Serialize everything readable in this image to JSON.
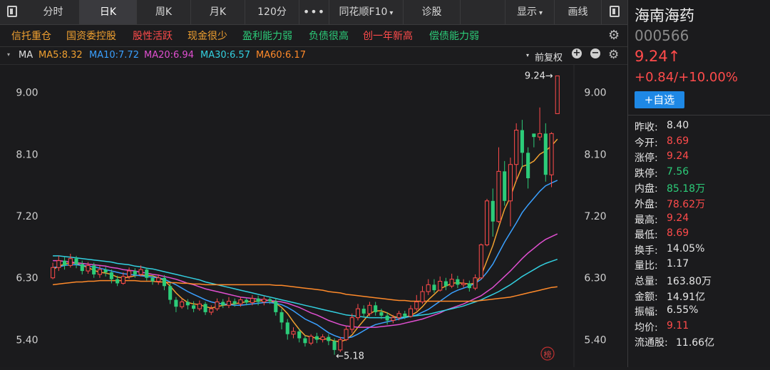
{
  "tabs": [
    "分时",
    "日K",
    "周K",
    "月K",
    "120分",
    "•••",
    "同花顺F10",
    "诊股",
    "显示",
    "画线"
  ],
  "active_tab": "日K",
  "tags": [
    {
      "text": "信托重仓",
      "color": "#f0a030"
    },
    {
      "text": "国资委控股",
      "color": "#f0a030"
    },
    {
      "text": "股性活跃",
      "color": "#ff4b4b"
    },
    {
      "text": "现金很少",
      "color": "#f0a030"
    },
    {
      "text": "盈利能力弱",
      "color": "#2ccc79"
    },
    {
      "text": "负债很高",
      "color": "#2ccc79"
    },
    {
      "text": "创一年新高",
      "color": "#ff4b4b"
    },
    {
      "text": "偿债能力弱",
      "color": "#2ccc79"
    }
  ],
  "ma_label": "MA",
  "ma": [
    {
      "text": "MA5:8.32",
      "color": "#f0a030"
    },
    {
      "text": "MA10:7.72",
      "color": "#3aa0ff"
    },
    {
      "text": "MA20:6.94",
      "color": "#e04fd0"
    },
    {
      "text": "MA30:6.57",
      "color": "#33d0e0"
    },
    {
      "text": "MA60:6.17",
      "color": "#ff8a2a"
    }
  ],
  "adjust_label": "前复权",
  "rank_icon_label": "榜",
  "stock": {
    "name": "海南海药",
    "code": "000566",
    "price": "9.24↑",
    "change": "+0.84/+10.00%",
    "watch_button": "+自选"
  },
  "stats": [
    {
      "label": "昨收:",
      "value": "8.40",
      "cls": ""
    },
    {
      "label": "今开:",
      "value": "8.69",
      "cls": "red"
    },
    {
      "label": "涨停:",
      "value": "9.24",
      "cls": "red"
    },
    {
      "label": "跌停:",
      "value": "7.56",
      "cls": "green"
    },
    {
      "label": "内盘:",
      "value": "85.18万",
      "cls": "green"
    },
    {
      "label": "外盘:",
      "value": "78.62万",
      "cls": "red"
    },
    {
      "label": "最高:",
      "value": "9.24",
      "cls": "red"
    },
    {
      "label": "最低:",
      "value": "8.69",
      "cls": "red"
    },
    {
      "label": "换手:",
      "value": "14.05%",
      "cls": ""
    },
    {
      "label": "量比:",
      "value": "1.17",
      "cls": ""
    },
    {
      "label": "总量:",
      "value": "163.80万",
      "cls": ""
    },
    {
      "label": "金额:",
      "value": "14.91亿",
      "cls": ""
    },
    {
      "label": "振幅:",
      "value": "6.55%",
      "cls": ""
    },
    {
      "label": "均价:",
      "value": "9.11",
      "cls": "red"
    },
    {
      "label": "流通股:",
      "value": "11.66亿",
      "cls": ""
    }
  ],
  "chart_data": {
    "type": "candlestick",
    "y_ticks": [
      "9.00",
      "8.10",
      "7.20",
      "6.30",
      "5.40"
    ],
    "y_tick_values": [
      9.0,
      8.1,
      7.2,
      6.3,
      5.4
    ],
    "y_range": [
      5.0,
      9.4
    ],
    "annotations": [
      {
        "text": "9.24→",
        "value": 9.24
      },
      {
        "text": "←5.18",
        "value": 5.18
      }
    ],
    "candles": [
      [
        6.3,
        6.45,
        6.28,
        6.52
      ],
      [
        6.45,
        6.55,
        6.4,
        6.62
      ],
      [
        6.55,
        6.48,
        6.42,
        6.6
      ],
      [
        6.48,
        6.58,
        6.45,
        6.65
      ],
      [
        6.58,
        6.5,
        6.44,
        6.62
      ],
      [
        6.5,
        6.4,
        6.35,
        6.55
      ],
      [
        6.4,
        6.48,
        6.36,
        6.53
      ],
      [
        6.48,
        6.35,
        6.3,
        6.52
      ],
      [
        6.35,
        6.42,
        6.3,
        6.47
      ],
      [
        6.42,
        6.38,
        6.32,
        6.46
      ],
      [
        6.38,
        6.28,
        6.22,
        6.42
      ],
      [
        6.28,
        6.22,
        6.18,
        6.33
      ],
      [
        6.22,
        6.32,
        6.2,
        6.38
      ],
      [
        6.32,
        6.4,
        6.28,
        6.45
      ],
      [
        6.4,
        6.35,
        6.3,
        6.44
      ],
      [
        6.35,
        6.42,
        6.32,
        6.48
      ],
      [
        6.42,
        6.3,
        6.26,
        6.45
      ],
      [
        6.3,
        6.25,
        6.2,
        6.34
      ],
      [
        6.25,
        6.3,
        6.2,
        6.35
      ],
      [
        6.3,
        6.18,
        6.12,
        6.34
      ],
      [
        6.18,
        5.98,
        5.92,
        6.22
      ],
      [
        5.98,
        5.88,
        5.8,
        6.02
      ],
      [
        5.88,
        5.95,
        5.85,
        6.0
      ],
      [
        5.95,
        5.9,
        5.84,
        5.99
      ],
      [
        5.9,
        5.85,
        5.8,
        5.96
      ],
      [
        5.85,
        5.92,
        5.82,
        5.97
      ],
      [
        5.92,
        5.8,
        5.76,
        5.95
      ],
      [
        5.8,
        5.85,
        5.76,
        5.9
      ],
      [
        5.85,
        5.95,
        5.82,
        6.0
      ],
      [
        5.95,
        5.9,
        5.86,
        5.99
      ],
      [
        5.9,
        5.96,
        5.86,
        6.02
      ],
      [
        5.96,
        5.92,
        5.88,
        6.0
      ],
      [
        5.92,
        5.98,
        5.88,
        6.02
      ],
      [
        5.98,
        5.94,
        5.9,
        6.0
      ],
      [
        5.94,
        6.0,
        5.9,
        6.05
      ],
      [
        6.0,
        5.95,
        5.9,
        6.04
      ],
      [
        5.95,
        5.99,
        5.9,
        6.03
      ],
      [
        5.99,
        5.96,
        5.92,
        6.01
      ],
      [
        5.96,
        5.8,
        5.75,
        6.0
      ],
      [
        5.8,
        5.65,
        5.55,
        5.85
      ],
      [
        5.65,
        5.48,
        5.4,
        5.7
      ],
      [
        5.48,
        5.52,
        5.42,
        5.58
      ],
      [
        5.52,
        5.42,
        5.36,
        5.56
      ],
      [
        5.42,
        5.35,
        5.3,
        5.46
      ],
      [
        5.35,
        5.45,
        5.32,
        5.48
      ],
      [
        5.45,
        5.4,
        5.35,
        5.5
      ],
      [
        5.4,
        5.44,
        5.36,
        5.48
      ],
      [
        5.44,
        5.38,
        5.32,
        5.48
      ],
      [
        5.38,
        5.25,
        5.18,
        5.42
      ],
      [
        5.25,
        5.4,
        5.22,
        5.44
      ],
      [
        5.4,
        5.55,
        5.38,
        5.6
      ],
      [
        5.55,
        5.72,
        5.5,
        5.78
      ],
      [
        5.72,
        5.85,
        5.68,
        5.92
      ],
      [
        5.85,
        5.78,
        5.72,
        5.9
      ],
      [
        5.78,
        5.9,
        5.74,
        5.95
      ],
      [
        5.9,
        5.8,
        5.75,
        5.95
      ],
      [
        5.8,
        5.75,
        5.7,
        5.85
      ],
      [
        5.75,
        5.68,
        5.62,
        5.8
      ],
      [
        5.68,
        5.72,
        5.64,
        5.76
      ],
      [
        5.72,
        5.78,
        5.68,
        5.82
      ],
      [
        5.78,
        5.74,
        5.7,
        5.82
      ],
      [
        5.74,
        5.85,
        5.72,
        5.9
      ],
      [
        5.85,
        5.95,
        5.82,
        6.05
      ],
      [
        5.95,
        6.1,
        5.92,
        6.18
      ],
      [
        6.1,
        6.2,
        6.05,
        6.28
      ],
      [
        6.2,
        6.12,
        6.08,
        6.28
      ],
      [
        6.12,
        6.25,
        6.1,
        6.32
      ],
      [
        6.25,
        6.18,
        6.12,
        6.3
      ],
      [
        6.18,
        6.28,
        6.15,
        6.36
      ],
      [
        6.28,
        6.2,
        6.15,
        6.33
      ],
      [
        6.2,
        6.22,
        6.16,
        6.28
      ],
      [
        6.22,
        6.15,
        6.1,
        6.26
      ],
      [
        6.15,
        6.3,
        6.12,
        6.35
      ],
      [
        6.3,
        6.78,
        6.28,
        6.8
      ],
      [
        6.78,
        7.42,
        6.76,
        7.45
      ],
      [
        7.42,
        7.12,
        6.9,
        7.6
      ],
      [
        7.12,
        7.85,
        7.1,
        8.2
      ],
      [
        7.85,
        7.42,
        7.35,
        8.0
      ],
      [
        7.42,
        7.95,
        7.05,
        8.05
      ],
      [
        7.95,
        8.45,
        7.7,
        8.55
      ],
      [
        8.45,
        8.12,
        7.9,
        8.6
      ],
      [
        8.12,
        7.75,
        7.6,
        8.2
      ],
      [
        8.4,
        8.35,
        8.2,
        8.4
      ],
      [
        8.35,
        8.4,
        8.3,
        8.78
      ],
      [
        8.4,
        7.8,
        7.7,
        8.55
      ],
      [
        7.8,
        8.4,
        7.62,
        8.42
      ],
      [
        8.69,
        9.24,
        8.69,
        9.24
      ]
    ],
    "ma_lines": [
      {
        "name": "MA5",
        "color": "#f0a030",
        "values": [
          6.42,
          6.47,
          6.5,
          6.52,
          6.51,
          6.48,
          6.45,
          6.41,
          6.38,
          6.37,
          6.35,
          6.31,
          6.3,
          6.31,
          6.33,
          6.34,
          6.34,
          6.33,
          6.3,
          6.26,
          6.18,
          6.08,
          6.0,
          5.94,
          5.92,
          5.91,
          5.88,
          5.86,
          5.88,
          5.9,
          5.91,
          5.92,
          5.94,
          5.95,
          5.96,
          5.96,
          5.97,
          5.97,
          5.93,
          5.87,
          5.78,
          5.66,
          5.55,
          5.46,
          5.44,
          5.42,
          5.41,
          5.41,
          5.38,
          5.37,
          5.4,
          5.47,
          5.58,
          5.68,
          5.78,
          5.82,
          5.82,
          5.79,
          5.74,
          5.72,
          5.73,
          5.75,
          5.8,
          5.88,
          5.98,
          6.06,
          6.14,
          6.18,
          6.22,
          6.23,
          6.22,
          6.21,
          6.22,
          6.33,
          6.55,
          6.77,
          7.04,
          7.3,
          7.48,
          7.72,
          7.92,
          7.95,
          8.0,
          8.1,
          8.15,
          8.22,
          8.32
        ]
      },
      {
        "name": "MA10",
        "color": "#3aa0ff",
        "values": [
          6.45,
          6.46,
          6.48,
          6.49,
          6.49,
          6.48,
          6.47,
          6.46,
          6.44,
          6.42,
          6.4,
          6.38,
          6.36,
          6.35,
          6.34,
          6.33,
          6.32,
          6.31,
          6.3,
          6.28,
          6.24,
          6.2,
          6.15,
          6.1,
          6.06,
          6.02,
          5.98,
          5.95,
          5.93,
          5.92,
          5.91,
          5.9,
          5.9,
          5.91,
          5.92,
          5.93,
          5.94,
          5.94,
          5.93,
          5.91,
          5.87,
          5.82,
          5.76,
          5.7,
          5.66,
          5.62,
          5.56,
          5.5,
          5.46,
          5.43,
          5.42,
          5.44,
          5.48,
          5.53,
          5.58,
          5.62,
          5.64,
          5.66,
          5.68,
          5.7,
          5.72,
          5.74,
          5.76,
          5.8,
          5.84,
          5.9,
          5.96,
          6.02,
          6.08,
          6.12,
          6.15,
          6.18,
          6.22,
          6.28,
          6.38,
          6.5,
          6.66,
          6.82,
          6.96,
          7.1,
          7.25,
          7.36,
          7.46,
          7.56,
          7.64,
          7.68,
          7.72
        ]
      },
      {
        "name": "MA20",
        "color": "#e04fd0",
        "values": [
          6.55,
          6.55,
          6.54,
          6.53,
          6.52,
          6.51,
          6.5,
          6.49,
          6.48,
          6.47,
          6.45,
          6.44,
          6.42,
          6.41,
          6.4,
          6.38,
          6.37,
          6.35,
          6.34,
          6.32,
          6.3,
          6.28,
          6.25,
          6.22,
          6.2,
          6.17,
          6.14,
          6.12,
          6.1,
          6.08,
          6.06,
          6.04,
          6.02,
          6.01,
          6.0,
          5.99,
          5.98,
          5.97,
          5.96,
          5.95,
          5.93,
          5.9,
          5.87,
          5.83,
          5.79,
          5.76,
          5.72,
          5.68,
          5.65,
          5.62,
          5.6,
          5.59,
          5.58,
          5.58,
          5.58,
          5.58,
          5.59,
          5.6,
          5.61,
          5.62,
          5.64,
          5.66,
          5.68,
          5.7,
          5.73,
          5.76,
          5.79,
          5.83,
          5.86,
          5.89,
          5.92,
          5.96,
          6.0,
          6.04,
          6.1,
          6.16,
          6.24,
          6.32,
          6.4,
          6.49,
          6.58,
          6.66,
          6.73,
          6.8,
          6.86,
          6.9,
          6.94
        ]
      },
      {
        "name": "MA30",
        "color": "#33d0e0",
        "values": [
          6.62,
          6.62,
          6.61,
          6.6,
          6.59,
          6.58,
          6.57,
          6.56,
          6.55,
          6.54,
          6.53,
          6.51,
          6.5,
          6.49,
          6.47,
          6.46,
          6.44,
          6.43,
          6.41,
          6.39,
          6.37,
          6.35,
          6.33,
          6.31,
          6.29,
          6.27,
          6.24,
          6.22,
          6.2,
          6.18,
          6.16,
          6.14,
          6.12,
          6.1,
          6.08,
          6.06,
          6.04,
          6.02,
          6.0,
          5.98,
          5.96,
          5.94,
          5.92,
          5.9,
          5.88,
          5.86,
          5.84,
          5.82,
          5.8,
          5.78,
          5.76,
          5.75,
          5.74,
          5.73,
          5.72,
          5.72,
          5.72,
          5.72,
          5.72,
          5.72,
          5.73,
          5.74,
          5.75,
          5.76,
          5.77,
          5.79,
          5.81,
          5.83,
          5.85,
          5.87,
          5.89,
          5.92,
          5.95,
          5.98,
          6.02,
          6.06,
          6.1,
          6.15,
          6.2,
          6.26,
          6.32,
          6.37,
          6.42,
          6.47,
          6.51,
          6.54,
          6.57
        ]
      },
      {
        "name": "MA60",
        "color": "#ff8a2a",
        "values": [
          6.2,
          6.21,
          6.22,
          6.23,
          6.24,
          6.24,
          6.25,
          6.25,
          6.26,
          6.26,
          6.26,
          6.26,
          6.26,
          6.26,
          6.26,
          6.25,
          6.25,
          6.25,
          6.24,
          6.24,
          6.23,
          6.23,
          6.22,
          6.22,
          6.21,
          6.21,
          6.2,
          6.2,
          6.2,
          6.2,
          6.2,
          6.2,
          6.2,
          6.2,
          6.2,
          6.2,
          6.2,
          6.2,
          6.19,
          6.19,
          6.18,
          6.17,
          6.16,
          6.15,
          6.14,
          6.13,
          6.12,
          6.1,
          6.09,
          6.08,
          6.06,
          6.05,
          6.04,
          6.03,
          6.02,
          6.01,
          6.0,
          5.99,
          5.98,
          5.97,
          5.97,
          5.96,
          5.96,
          5.96,
          5.96,
          5.96,
          5.96,
          5.96,
          5.96,
          5.96,
          5.96,
          5.96,
          5.96,
          5.97,
          5.98,
          5.99,
          6.0,
          6.01,
          6.02,
          6.04,
          6.06,
          6.08,
          6.1,
          6.12,
          6.14,
          6.16,
          6.17
        ]
      }
    ]
  }
}
